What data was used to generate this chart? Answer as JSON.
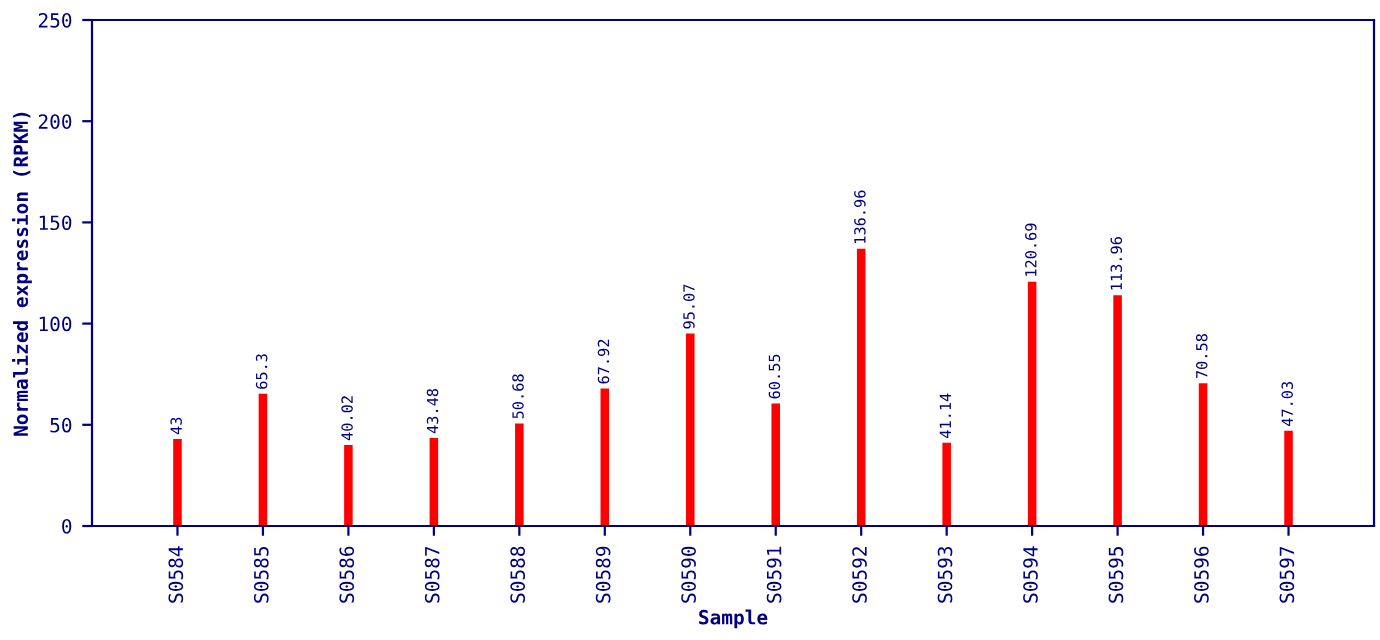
{
  "chart_data": {
    "type": "bar",
    "xlabel": "Sample",
    "ylabel": "Normalized expression (RPKM)",
    "categories": [
      "S0584",
      "S0585",
      "S0586",
      "S0587",
      "S0588",
      "S0589",
      "S0590",
      "S0591",
      "S0592",
      "S0593",
      "S0594",
      "S0595",
      "S0596",
      "S0597"
    ],
    "values": [
      43,
      65.3,
      40.02,
      43.48,
      50.68,
      67.92,
      95.07,
      60.55,
      136.96,
      41.14,
      120.69,
      113.96,
      70.58,
      47.03
    ],
    "color": "#ff0000",
    "ylim": [
      0,
      250
    ],
    "yticks": [
      0,
      50,
      100,
      150,
      200,
      250
    ],
    "grid": false,
    "data_labels": true
  }
}
